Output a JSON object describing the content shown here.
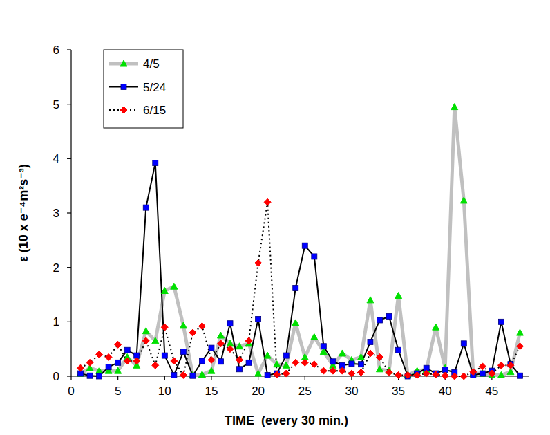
{
  "chart_data": {
    "type": "line",
    "x_label": "TIME  (every 30 min.)",
    "y_label": "ε (10 x e⁻⁴m²s⁻³)",
    "x": [
      1,
      2,
      3,
      4,
      5,
      6,
      7,
      8,
      9,
      10,
      11,
      12,
      13,
      14,
      15,
      16,
      17,
      18,
      19,
      20,
      21,
      22,
      23,
      24,
      25,
      26,
      27,
      28,
      29,
      30,
      31,
      32,
      33,
      34,
      35,
      36,
      37,
      38,
      39,
      40,
      41,
      42,
      43,
      44,
      45,
      46,
      47,
      48
    ],
    "series": [
      {
        "name": "4/5",
        "color": "#00e000",
        "marker": "triangle",
        "line_style": "solid",
        "values": [
          0.05,
          0.15,
          0.1,
          0.1,
          0.1,
          0.35,
          0.2,
          0.83,
          0.65,
          1.57,
          1.65,
          0.93,
          0.02,
          0.03,
          0.1,
          0.75,
          0.6,
          0.55,
          0.6,
          0.05,
          0.38,
          0.22,
          0.2,
          0.98,
          0.35,
          0.72,
          0.45,
          0.2,
          0.42,
          0.3,
          0.35,
          1.4,
          0.13,
          0.1,
          1.48,
          0.02,
          0.1,
          0.12,
          0.9,
          0.15,
          4.95,
          3.23,
          0.05,
          0.05,
          0.02,
          0.02,
          0.08,
          0.8
        ]
      },
      {
        "name": "5/24",
        "color": "#0000ff",
        "marker": "square",
        "line_style": "solid",
        "values": [
          0.05,
          0.01,
          0.0,
          0.17,
          0.25,
          0.48,
          0.38,
          3.1,
          3.92,
          0.38,
          0.02,
          0.45,
          0.01,
          0.28,
          0.52,
          0.27,
          0.97,
          0.13,
          0.25,
          1.05,
          0.02,
          0.05,
          0.38,
          1.62,
          2.4,
          2.2,
          0.55,
          0.27,
          0.2,
          0.23,
          0.22,
          0.63,
          1.03,
          1.1,
          0.48,
          0.0,
          0.05,
          0.15,
          0.05,
          0.12,
          0.07,
          0.6,
          0.02,
          0.05,
          0.1,
          1.0,
          0.22,
          0.01
        ]
      },
      {
        "name": "6/15",
        "color": "#ff0000",
        "marker": "diamond",
        "line_style": "dotted",
        "values": [
          0.15,
          0.25,
          0.4,
          0.35,
          0.58,
          0.28,
          0.28,
          0.65,
          0.2,
          0.9,
          0.28,
          0.02,
          0.8,
          0.92,
          0.3,
          0.6,
          0.5,
          0.3,
          0.65,
          2.08,
          3.2,
          0.03,
          0.05,
          0.25,
          0.25,
          0.22,
          0.1,
          0.1,
          0.1,
          0.05,
          0.07,
          0.42,
          0.35,
          0.07,
          0.02,
          0.02,
          0.02,
          0.05,
          0.03,
          0.01,
          0.0,
          0.0,
          0.08,
          0.18,
          0.05,
          0.2,
          0.2,
          0.55
        ]
      }
    ],
    "xlim": [
      0,
      49
    ],
    "xticks": [
      0,
      5,
      10,
      15,
      20,
      25,
      30,
      35,
      40,
      45
    ],
    "ylim": [
      0,
      6
    ],
    "yticks": [
      0,
      1,
      2,
      3,
      4,
      5,
      6
    ],
    "grid": false,
    "legend": "upper left"
  }
}
